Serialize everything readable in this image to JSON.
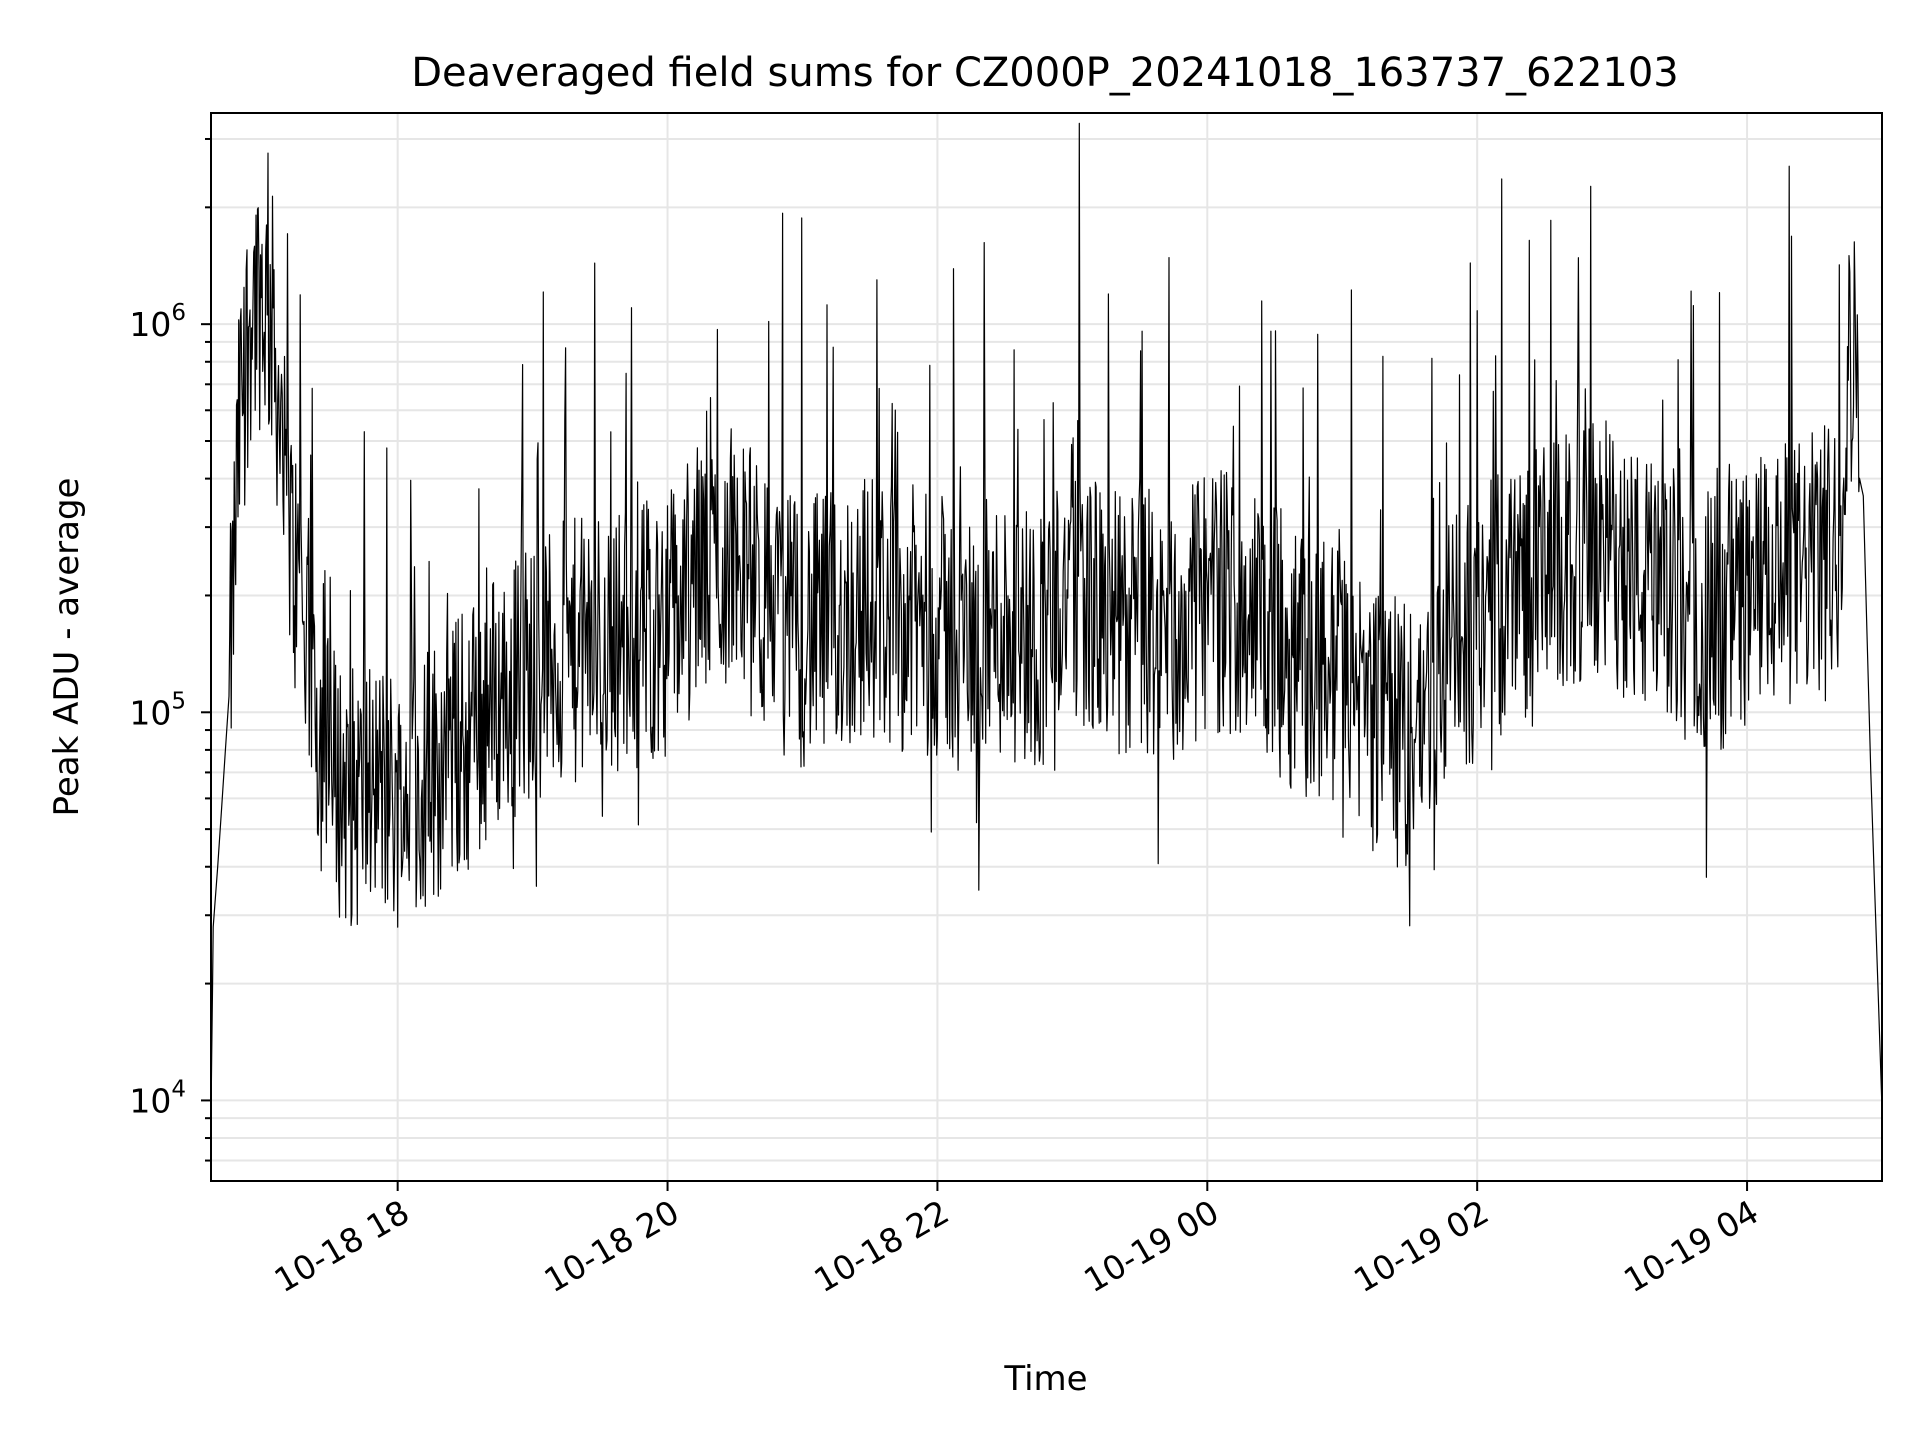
{
  "chart_data": {
    "type": "line",
    "title": "Deaveraged field sums for CZ000P_20241018_163737_622103",
    "xlabel": "Time",
    "ylabel": "Peak ADU - average",
    "y_scale": "log",
    "ylim": [
      6200,
      3500000
    ],
    "y_major_ticks": [
      {
        "value": 10000,
        "base": "10",
        "exp": "4"
      },
      {
        "value": 100000,
        "base": "10",
        "exp": "5"
      },
      {
        "value": 1000000,
        "base": "10",
        "exp": "6"
      }
    ],
    "xlim": [
      "2024-10-18T16:37",
      "2024-10-19T05:00"
    ],
    "x_ticks": [
      {
        "value": "2024-10-18T18:00",
        "label": "10-18 18"
      },
      {
        "value": "2024-10-18T20:00",
        "label": "10-18 20"
      },
      {
        "value": "2024-10-18T22:00",
        "label": "10-18 22"
      },
      {
        "value": "2024-10-19T00:00",
        "label": "10-19 00"
      },
      {
        "value": "2024-10-19T02:00",
        "label": "10-19 02"
      },
      {
        "value": "2024-10-19T04:00",
        "label": "10-19 04"
      }
    ],
    "grid": true,
    "line_color": "#000000",
    "series": [
      {
        "x": [
          "2024-10-18T16:37",
          "2024-10-18T16:38",
          "2024-10-18T16:40",
          "2024-10-18T16:45",
          "2024-10-18T16:50",
          "2024-10-18T16:55",
          "2024-10-18T17:00",
          "2024-10-18T17:05",
          "2024-10-18T17:10",
          "2024-10-18T17:15",
          "2024-10-18T17:20",
          "2024-10-18T17:25",
          "2024-10-18T17:30",
          "2024-10-18T17:40",
          "2024-10-18T17:50",
          "2024-10-18T18:00",
          "2024-10-18T18:15",
          "2024-10-18T18:30",
          "2024-10-18T18:45",
          "2024-10-18T19:00",
          "2024-10-18T19:15",
          "2024-10-18T19:30",
          "2024-10-18T19:45",
          "2024-10-18T20:00",
          "2024-10-18T20:15",
          "2024-10-18T20:30",
          "2024-10-18T20:45",
          "2024-10-18T21:00",
          "2024-10-18T21:15",
          "2024-10-18T21:30",
          "2024-10-18T21:45",
          "2024-10-18T22:00",
          "2024-10-18T22:15",
          "2024-10-18T22:30",
          "2024-10-18T22:45",
          "2024-10-18T23:00",
          "2024-10-18T23:15",
          "2024-10-18T23:30",
          "2024-10-18T23:45",
          "2024-10-19T00:00",
          "2024-10-19T00:15",
          "2024-10-19T00:30",
          "2024-10-19T00:45",
          "2024-10-19T01:00",
          "2024-10-19T01:15",
          "2024-10-19T01:30",
          "2024-10-19T01:45",
          "2024-10-19T02:00",
          "2024-10-19T02:15",
          "2024-10-19T02:30",
          "2024-10-19T02:45",
          "2024-10-19T03:00",
          "2024-10-19T03:15",
          "2024-10-19T03:30",
          "2024-10-19T03:45",
          "2024-10-19T04:00",
          "2024-10-19T04:15",
          "2024-10-19T04:30",
          "2024-10-19T04:40",
          "2024-10-19T04:45",
          "2024-10-19T04:50",
          "2024-10-19T04:55",
          "2024-10-19T05:00"
        ],
        "values": [
          9000,
          28000,
          40000,
          110000,
          600000,
          1150000,
          1200000,
          950000,
          350000,
          220000,
          150000,
          90000,
          70000,
          60000,
          65000,
          60000,
          70000,
          85000,
          110000,
          130000,
          140000,
          150000,
          160000,
          170000,
          230000,
          260000,
          180000,
          160000,
          170000,
          190000,
          175000,
          165000,
          150000,
          170000,
          155000,
          230000,
          165000,
          170000,
          150000,
          200000,
          190000,
          155000,
          130000,
          125000,
          95000,
          85000,
          130000,
          170000,
          210000,
          220000,
          250000,
          260000,
          205000,
          190000,
          170000,
          200000,
          220000,
          240000,
          260000,
          760000,
          820000,
          70000,
          9500
        ]
      }
    ]
  }
}
